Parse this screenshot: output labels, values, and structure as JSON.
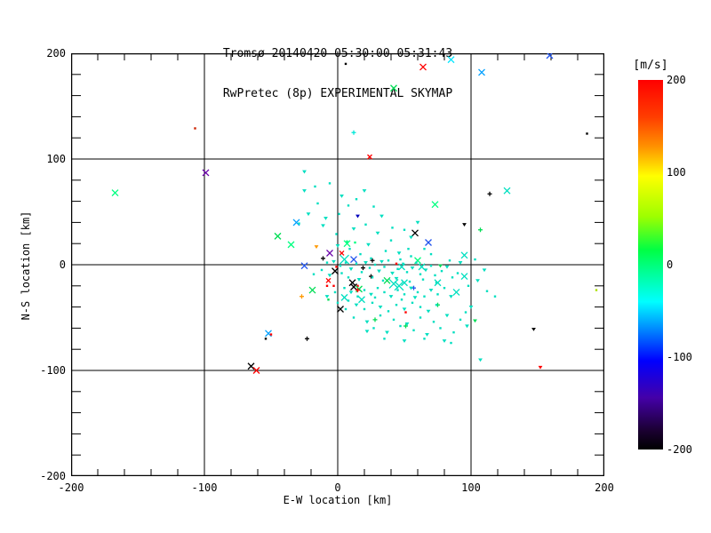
{
  "title": {
    "line1": "Tromsø 20140420 05:30:00–05:31:43",
    "line2": "RwPretec (8p) EXPERIMENTAL SKYMAP"
  },
  "chart_data": {
    "type": "scatter",
    "xlabel": "E-W location [km]",
    "ylabel": "N-S location [km]",
    "xlim": [
      -200,
      200
    ],
    "ylim": [
      -200,
      200
    ],
    "x_ticks": [
      -200,
      -100,
      0,
      100,
      200
    ],
    "y_ticks": [
      -200,
      -100,
      0,
      100,
      200
    ],
    "minor_tick_step": 20,
    "grid_values": [
      -100,
      0,
      100
    ],
    "grid_on": true,
    "axis_color": "#000000",
    "cluster_color": "#00dfc0",
    "colorbar": {
      "title": "[m/s]",
      "min": -200,
      "max": 200,
      "ticks": [
        200,
        100,
        0,
        -100,
        -200
      ],
      "gradient": [
        [
          "#ff0000",
          0.0
        ],
        [
          "#ff3d00",
          0.1
        ],
        [
          "#ff9100",
          0.18
        ],
        [
          "#ffff00",
          0.26
        ],
        [
          "#9dff00",
          0.37
        ],
        [
          "#00ff44",
          0.46
        ],
        [
          "#00ff95",
          0.52
        ],
        [
          "#00ffff",
          0.6
        ],
        [
          "#0090ff",
          0.67
        ],
        [
          "#0000ff",
          0.76
        ],
        [
          "#4400a8",
          0.86
        ],
        [
          "#1a0030",
          0.95
        ],
        [
          "#000000",
          1.0
        ]
      ]
    },
    "points": [
      [
        6,
        190,
        ".",
        "#000000",
        1
      ],
      [
        64,
        187,
        "x",
        "#ff0000",
        2
      ],
      [
        85,
        194,
        "x",
        "#00e5ff",
        2
      ],
      [
        159,
        198,
        "x",
        "#2255ee",
        2
      ],
      [
        42,
        167,
        "x",
        "#00dd55",
        2
      ],
      [
        108,
        182,
        "x",
        "#00a0ff",
        2
      ],
      [
        187,
        124,
        ".",
        "#000000",
        1
      ],
      [
        12,
        125,
        "+",
        "#00e8d8",
        1
      ],
      [
        24,
        102,
        "x",
        "#ff0000",
        1
      ],
      [
        -25,
        88,
        "v",
        "#00dfc0",
        1
      ],
      [
        -107,
        129,
        ".",
        "#cc2200",
        1
      ],
      [
        -99,
        87,
        "x",
        "#6a00aa",
        2
      ],
      [
        -167,
        68,
        "x",
        "#00ff80",
        2
      ],
      [
        194,
        -24,
        ".",
        "#aae000",
        1
      ],
      [
        147,
        -61,
        "v",
        "#000000",
        1
      ],
      [
        152,
        -97,
        "v",
        "#ff0000",
        1
      ],
      [
        -65,
        -96,
        "x",
        "#000000",
        2
      ],
      [
        -61,
        -100,
        "x",
        "#ff0000",
        2
      ],
      [
        -52,
        -65,
        "x",
        "#00a0ff",
        2
      ],
      [
        -50,
        -66,
        ".",
        "#ff0000",
        1
      ],
      [
        -54,
        -70,
        ".",
        "#000000",
        1
      ],
      [
        -23,
        -70,
        "+",
        "#000000",
        1
      ],
      [
        114,
        67,
        "+",
        "#000000",
        1
      ],
      [
        127,
        70,
        "x",
        "#00dfc0",
        2
      ],
      [
        73,
        57,
        "x",
        "#00ff80",
        2
      ],
      [
        58,
        30,
        "x",
        "#000000",
        2
      ],
      [
        68,
        21,
        "x",
        "#2255ee",
        2
      ],
      [
        95,
        38,
        "v",
        "#000000",
        1
      ],
      [
        107,
        33,
        "+",
        "#00dd55",
        1
      ],
      [
        95,
        9,
        "x",
        "#00dfc0",
        2
      ],
      [
        77,
        -1,
        "v",
        "#00dd55",
        1
      ],
      [
        95,
        -11,
        "x",
        "#00dfc0",
        2
      ],
      [
        75,
        -17,
        "x",
        "#00dfc0",
        2
      ],
      [
        -31,
        40,
        "x",
        "#00a0ff",
        2
      ],
      [
        -45,
        27,
        "x",
        "#00dd55",
        2
      ],
      [
        -35,
        19,
        "x",
        "#00ff80",
        2
      ],
      [
        -16,
        17,
        "v",
        "#ff9900",
        1
      ],
      [
        -6,
        11,
        "x",
        "#6a00aa",
        2
      ],
      [
        -25,
        -1,
        "x",
        "#2255ee",
        2
      ],
      [
        15,
        46,
        "v",
        "#0000bb",
        1
      ],
      [
        -11,
        6,
        "+",
        "#000000",
        1
      ],
      [
        3,
        11,
        "x",
        "#ff0000",
        1
      ],
      [
        -1,
        -2,
        ".",
        "#ff0000",
        1
      ],
      [
        -2,
        -6,
        "x",
        "#000000",
        2
      ],
      [
        -7,
        -15,
        "x",
        "#ff0000",
        1
      ],
      [
        19,
        -3,
        "+",
        "#000000",
        1
      ],
      [
        25,
        -11,
        "+",
        "#000000",
        1
      ],
      [
        26,
        4,
        "+",
        "#000000",
        1
      ],
      [
        11,
        -17,
        "x",
        "#000000",
        2
      ],
      [
        15,
        -20,
        ".",
        "#ff0000",
        1
      ],
      [
        16,
        -23,
        "x",
        "#00dd55",
        2
      ],
      [
        12,
        -21,
        "x",
        "#000000",
        2
      ],
      [
        15,
        -24,
        "+",
        "#ff0000",
        1
      ],
      [
        -19,
        -24,
        "x",
        "#00dd55",
        2
      ],
      [
        -27,
        -30,
        "+",
        "#ff9900",
        1
      ],
      [
        -8,
        -20,
        ".",
        "#ff0000",
        1
      ],
      [
        -3,
        -20,
        ".",
        "#ff0000",
        1
      ],
      [
        5,
        -31,
        "x",
        "#00dfc0",
        2
      ],
      [
        2,
        -42,
        "x",
        "#000000",
        2
      ],
      [
        -7,
        -33,
        ".",
        "#00dd55",
        1
      ],
      [
        28,
        -52,
        "+",
        "#00dd55",
        1
      ],
      [
        51,
        -58,
        "+",
        "#00dd55",
        1
      ],
      [
        22,
        -63,
        "v",
        "#00dfc0",
        1
      ],
      [
        51,
        -45,
        ".",
        "#ff0000",
        1
      ],
      [
        57,
        -22,
        "+",
        "#2255ee",
        1
      ],
      [
        89,
        -26,
        "x",
        "#00dfc0",
        2
      ],
      [
        75,
        -38,
        "+",
        "#00dd55",
        1
      ],
      [
        100,
        -40,
        "v",
        "#00dfc0",
        1
      ],
      [
        103,
        -53,
        "v",
        "#00dd55",
        1
      ],
      [
        80,
        -72,
        "v",
        "#00dfc0",
        1
      ],
      [
        107,
        -90,
        "v",
        "#00dfc0",
        1
      ],
      [
        37,
        -15,
        "x",
        "#00dd55",
        2
      ],
      [
        42,
        -18,
        "x",
        "#00dfc0",
        3
      ],
      [
        46,
        -20,
        "x",
        "#00dfc0",
        3
      ],
      [
        50,
        -17,
        "x",
        "#00dfc0",
        2
      ],
      [
        48,
        -2,
        "x",
        "#00dfc0",
        2
      ],
      [
        60,
        4,
        "x",
        "#00ff80",
        2
      ],
      [
        63,
        -2,
        "x",
        "#00dfc0",
        2
      ],
      [
        44,
        1,
        ".",
        "#ff0000",
        1
      ],
      [
        5,
        5,
        "x",
        "#00dfc0",
        3
      ],
      [
        12,
        5,
        "x",
        "#2255ee",
        2
      ],
      [
        7,
        20,
        "x",
        "#00ff80",
        2
      ],
      [
        7,
        22,
        ".",
        "#00ff80",
        1
      ],
      [
        13,
        21,
        ".",
        "#00ff80",
        1
      ],
      [
        18,
        -33,
        "x",
        "#00dfc0",
        2
      ],
      [
        -25,
        70,
        "v"
      ],
      [
        -17,
        74,
        "."
      ],
      [
        -6,
        77,
        "."
      ],
      [
        -15,
        58,
        "."
      ],
      [
        -22,
        48,
        "v"
      ],
      [
        -29,
        39,
        "."
      ],
      [
        -9,
        44,
        "v"
      ],
      [
        3,
        65,
        "v"
      ],
      [
        8,
        56,
        "."
      ],
      [
        1,
        48,
        "."
      ],
      [
        14,
        62,
        "."
      ],
      [
        20,
        70,
        "v"
      ],
      [
        27,
        55,
        "."
      ],
      [
        33,
        46,
        "v"
      ],
      [
        21,
        38,
        "."
      ],
      [
        30,
        30,
        "v"
      ],
      [
        41,
        35,
        "."
      ],
      [
        12,
        34,
        "v"
      ],
      [
        -1,
        29,
        "."
      ],
      [
        -11,
        37,
        "v"
      ],
      [
        23,
        19,
        "v"
      ],
      [
        36,
        13,
        "."
      ],
      [
        46,
        11,
        "v"
      ],
      [
        53,
        15,
        "."
      ],
      [
        40,
        23,
        "."
      ],
      [
        55,
        26,
        "v"
      ],
      [
        65,
        15,
        "."
      ],
      [
        9,
        15,
        "."
      ],
      [
        0,
        18,
        "v"
      ],
      [
        17,
        10,
        "."
      ],
      [
        25,
        6,
        "."
      ],
      [
        33,
        3,
        "v"
      ],
      [
        47,
        5,
        "."
      ],
      [
        55,
        8,
        "."
      ],
      [
        70,
        10,
        "."
      ],
      [
        84,
        4,
        "."
      ],
      [
        92,
        2,
        "v"
      ],
      [
        50,
        33,
        "."
      ],
      [
        60,
        40,
        "v"
      ],
      [
        -8,
        2,
        "."
      ],
      [
        -3,
        3,
        "v"
      ],
      [
        2,
        -1,
        "."
      ],
      [
        6,
        2,
        "."
      ],
      [
        10,
        -4,
        "v"
      ],
      [
        14,
        1,
        "."
      ],
      [
        18,
        -7,
        "."
      ],
      [
        21,
        2,
        "v"
      ],
      [
        24,
        -3,
        "."
      ],
      [
        28,
        0,
        "."
      ],
      [
        31,
        -6,
        "v"
      ],
      [
        35,
        -2,
        "."
      ],
      [
        38,
        4,
        "."
      ],
      [
        41,
        -8,
        "v"
      ],
      [
        45,
        -4,
        "."
      ],
      [
        49,
        1,
        "."
      ],
      [
        52,
        -7,
        "."
      ],
      [
        56,
        -3,
        "v"
      ],
      [
        59,
        2,
        "."
      ],
      [
        62,
        -9,
        "."
      ],
      [
        66,
        -5,
        "v"
      ],
      [
        70,
        -1,
        "."
      ],
      [
        73,
        -10,
        "."
      ],
      [
        78,
        -6,
        "."
      ],
      [
        82,
        -2,
        "v"
      ],
      [
        86,
        -12,
        "."
      ],
      [
        90,
        -8,
        "."
      ],
      [
        8,
        -12,
        "."
      ],
      [
        16,
        -14,
        "v"
      ],
      [
        26,
        -12,
        "."
      ],
      [
        34,
        -15,
        "."
      ],
      [
        44,
        -13,
        "v"
      ],
      [
        54,
        -16,
        "."
      ],
      [
        64,
        -14,
        "."
      ],
      [
        74,
        -17,
        "."
      ],
      [
        3,
        -8,
        "."
      ],
      [
        -6,
        -10,
        "v"
      ],
      [
        -12,
        -5,
        "."
      ],
      [
        -18,
        -9,
        "."
      ],
      [
        5,
        -22,
        "."
      ],
      [
        10,
        -26,
        "v"
      ],
      [
        15,
        -30,
        "."
      ],
      [
        20,
        -24,
        "."
      ],
      [
        25,
        -28,
        "v"
      ],
      [
        30,
        -22,
        "."
      ],
      [
        35,
        -26,
        "."
      ],
      [
        40,
        -30,
        "v"
      ],
      [
        45,
        -24,
        "."
      ],
      [
        50,
        -28,
        "."
      ],
      [
        55,
        -22,
        "v"
      ],
      [
        60,
        -26,
        "."
      ],
      [
        65,
        -30,
        "."
      ],
      [
        70,
        -24,
        "v"
      ],
      [
        75,
        -28,
        "."
      ],
      [
        80,
        -22,
        "."
      ],
      [
        85,
        -30,
        "v"
      ],
      [
        8,
        -34,
        "."
      ],
      [
        14,
        -38,
        "v"
      ],
      [
        20,
        -42,
        "."
      ],
      [
        26,
        -36,
        "."
      ],
      [
        32,
        -40,
        "v"
      ],
      [
        38,
        -44,
        "."
      ],
      [
        44,
        -38,
        "."
      ],
      [
        50,
        -42,
        "v"
      ],
      [
        56,
        -36,
        "."
      ],
      [
        62,
        -40,
        "."
      ],
      [
        68,
        -44,
        "v"
      ],
      [
        74,
        -38,
        "."
      ],
      [
        28,
        -31,
        "."
      ],
      [
        48,
        -33,
        "."
      ],
      [
        58,
        -31,
        "v"
      ],
      [
        -2,
        -26,
        "."
      ],
      [
        -8,
        -30,
        "v"
      ],
      [
        0,
        -36,
        "."
      ],
      [
        6,
        -42,
        "."
      ],
      [
        12,
        -50,
        "."
      ],
      [
        22,
        -54,
        "v"
      ],
      [
        32,
        -48,
        "."
      ],
      [
        42,
        -52,
        "."
      ],
      [
        52,
        -56,
        "v"
      ],
      [
        62,
        -50,
        "."
      ],
      [
        72,
        -54,
        "."
      ],
      [
        82,
        -48,
        "v"
      ],
      [
        92,
        -52,
        "."
      ],
      [
        27,
        -60,
        "."
      ],
      [
        37,
        -64,
        "v"
      ],
      [
        47,
        -58,
        "."
      ],
      [
        57,
        -62,
        "."
      ],
      [
        67,
        -66,
        "v"
      ],
      [
        77,
        -60,
        "."
      ],
      [
        87,
        -64,
        "."
      ],
      [
        97,
        -58,
        "v"
      ],
      [
        35,
        -70,
        "."
      ],
      [
        50,
        -72,
        "v"
      ],
      [
        65,
        -70,
        "."
      ],
      [
        85,
        -74,
        "."
      ],
      [
        98,
        -20,
        "."
      ],
      [
        105,
        -15,
        "v"
      ],
      [
        112,
        -25,
        "."
      ],
      [
        103,
        5,
        "."
      ],
      [
        110,
        -5,
        "v"
      ],
      [
        118,
        -30,
        "."
      ],
      [
        96,
        -45,
        "."
      ]
    ]
  }
}
